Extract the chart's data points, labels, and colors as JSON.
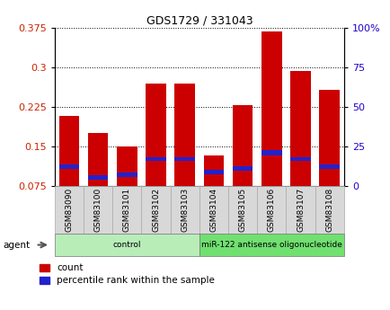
{
  "title": "GDS1729 / 331043",
  "samples": [
    "GSM83090",
    "GSM83100",
    "GSM83101",
    "GSM83102",
    "GSM83103",
    "GSM83104",
    "GSM83105",
    "GSM83106",
    "GSM83107",
    "GSM83108"
  ],
  "count_values": [
    0.208,
    0.175,
    0.15,
    0.27,
    0.27,
    0.133,
    0.228,
    0.368,
    0.293,
    0.258
  ],
  "percentile_bottom": [
    0.108,
    0.087,
    0.092,
    0.122,
    0.122,
    0.098,
    0.104,
    0.133,
    0.122,
    0.108
  ],
  "percentile_height": [
    0.008,
    0.008,
    0.008,
    0.008,
    0.008,
    0.008,
    0.008,
    0.01,
    0.008,
    0.008
  ],
  "groups": [
    {
      "label": "control",
      "start": 0,
      "end": 4,
      "color": "#b8edb8"
    },
    {
      "label": "miR-122 antisense oligonucleotide",
      "start": 5,
      "end": 9,
      "color": "#70e070"
    }
  ],
  "ylim_left": [
    0.075,
    0.375
  ],
  "yticks_left": [
    0.075,
    0.15,
    0.225,
    0.3,
    0.375
  ],
  "ylim_right": [
    0,
    100
  ],
  "yticks_right": [
    0,
    25,
    50,
    75,
    100
  ],
  "bar_color_red": "#cc0000",
  "bar_color_blue": "#2222cc",
  "bar_width": 0.7,
  "background_color": "#ffffff",
  "plot_bg": "#ffffff",
  "tick_label_color_left": "#cc2200",
  "tick_label_color_right": "#2200cc",
  "agent_label": "agent",
  "legend_count": "count",
  "legend_percentile": "percentile rank within the sample",
  "gray_box_color": "#d8d8d8",
  "gray_box_edge": "#aaaaaa"
}
